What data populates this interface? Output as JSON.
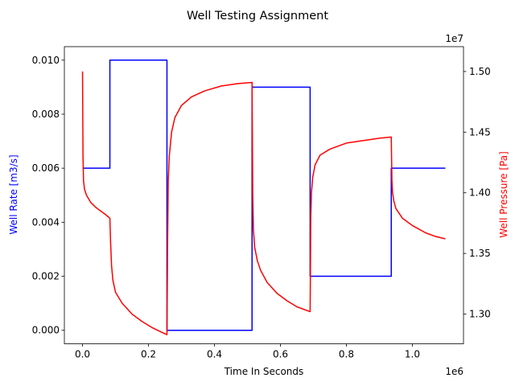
{
  "chart_data": {
    "type": "line",
    "title": "Well Testing Assignment",
    "xlabel": "Time In Seconds",
    "x_offset_text": "1e6",
    "xlim": [
      -0.055,
      1.155
    ],
    "x_ticks": [
      "0.0",
      "0.2",
      "0.4",
      "0.6",
      "0.8",
      "1.0"
    ],
    "y_left": {
      "label": "Well Rate [m3/s]",
      "color": "#0000ff",
      "ylim": [
        -0.0005,
        0.0105
      ],
      "ticks": [
        "0.000",
        "0.002",
        "0.004",
        "0.006",
        "0.008",
        "0.010"
      ]
    },
    "y_right": {
      "label": "Well Pressure [Pa]",
      "color": "#ff0000",
      "offset_text": "1e7",
      "ylim": [
        1.2755,
        1.5205
      ],
      "ticks": [
        "1.30",
        "1.35",
        "1.40",
        "1.45",
        "1.50"
      ]
    },
    "series": [
      {
        "name": "Well Rate [m3/s]",
        "axis": "left",
        "color": "#0000ff",
        "x": [
          0.0,
          0.083,
          0.083,
          0.256,
          0.256,
          0.514,
          0.514,
          0.69,
          0.69,
          0.936,
          0.936,
          1.1
        ],
        "y": [
          0.006,
          0.006,
          0.01,
          0.01,
          0.0,
          0.0,
          0.009,
          0.009,
          0.002,
          0.002,
          0.006,
          0.006
        ]
      },
      {
        "name": "Well Pressure [Pa]",
        "axis": "right",
        "color": "#ff0000",
        "x": [
          0.0,
          0.0015,
          0.003,
          0.006,
          0.012,
          0.025,
          0.04,
          0.055,
          0.07,
          0.083,
          0.085,
          0.088,
          0.092,
          0.1,
          0.12,
          0.15,
          0.18,
          0.21,
          0.24,
          0.256,
          0.258,
          0.26,
          0.263,
          0.27,
          0.28,
          0.3,
          0.33,
          0.37,
          0.42,
          0.47,
          0.514,
          0.516,
          0.518,
          0.522,
          0.53,
          0.54,
          0.56,
          0.59,
          0.62,
          0.65,
          0.69,
          0.692,
          0.694,
          0.698,
          0.705,
          0.72,
          0.75,
          0.8,
          0.85,
          0.9,
          0.936,
          0.938,
          0.94,
          0.944,
          0.95,
          0.97,
          1.0,
          1.04,
          1.07,
          1.1
        ],
        "y": [
          1.5,
          1.43,
          1.41,
          1.403,
          1.398,
          1.392,
          1.388,
          1.385,
          1.382,
          1.379,
          1.36,
          1.34,
          1.328,
          1.318,
          1.309,
          1.3,
          1.294,
          1.289,
          1.285,
          1.283,
          1.36,
          1.41,
          1.43,
          1.45,
          1.462,
          1.472,
          1.479,
          1.484,
          1.488,
          1.49,
          1.491,
          1.4,
          1.37,
          1.355,
          1.344,
          1.336,
          1.326,
          1.317,
          1.311,
          1.306,
          1.302,
          1.38,
          1.4,
          1.413,
          1.423,
          1.431,
          1.436,
          1.441,
          1.443,
          1.445,
          1.446,
          1.41,
          1.4,
          1.393,
          1.387,
          1.379,
          1.373,
          1.367,
          1.364,
          1.362
        ]
      }
    ],
    "grid": false,
    "legend": "none"
  }
}
